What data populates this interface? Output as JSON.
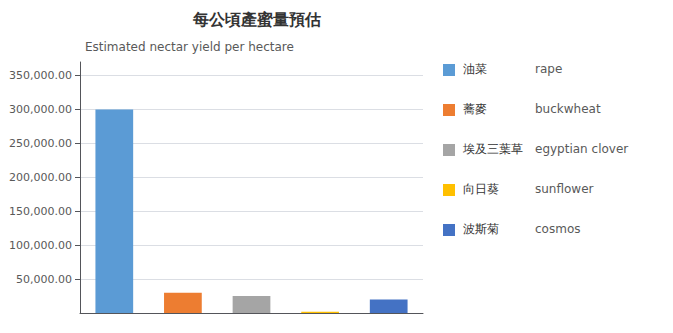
{
  "chart_data": {
    "type": "bar",
    "title": "每公頃產蜜量預估",
    "subtitle": "Estimated nectar yield per hectare",
    "categories": [
      "油菜",
      "蕎麥",
      "埃及三葉草",
      "向日葵",
      "波斯菊"
    ],
    "categories_en": [
      "rape",
      "buckwheat",
      "egyptian clover",
      "sunflower",
      "cosmos"
    ],
    "values": [
      300000,
      30000,
      25000,
      2000,
      20000
    ],
    "colors": [
      "#5B9BD5",
      "#ED7D31",
      "#A5A5A5",
      "#FFC000",
      "#4472C4"
    ],
    "ylim": [
      0,
      370000
    ],
    "yticks": [
      {
        "value": 50000,
        "label": "50,000.00"
      },
      {
        "value": 100000,
        "label": "100,000.00"
      },
      {
        "value": 150000,
        "label": "150,000.00"
      },
      {
        "value": 200000,
        "label": "200,000.00"
      },
      {
        "value": 250000,
        "label": "250,000.00"
      },
      {
        "value": 300000,
        "label": "300,000.00"
      },
      {
        "value": 350000,
        "label": "350,000.00"
      }
    ],
    "grid": true,
    "legend": "right",
    "tick_labels": "y"
  }
}
